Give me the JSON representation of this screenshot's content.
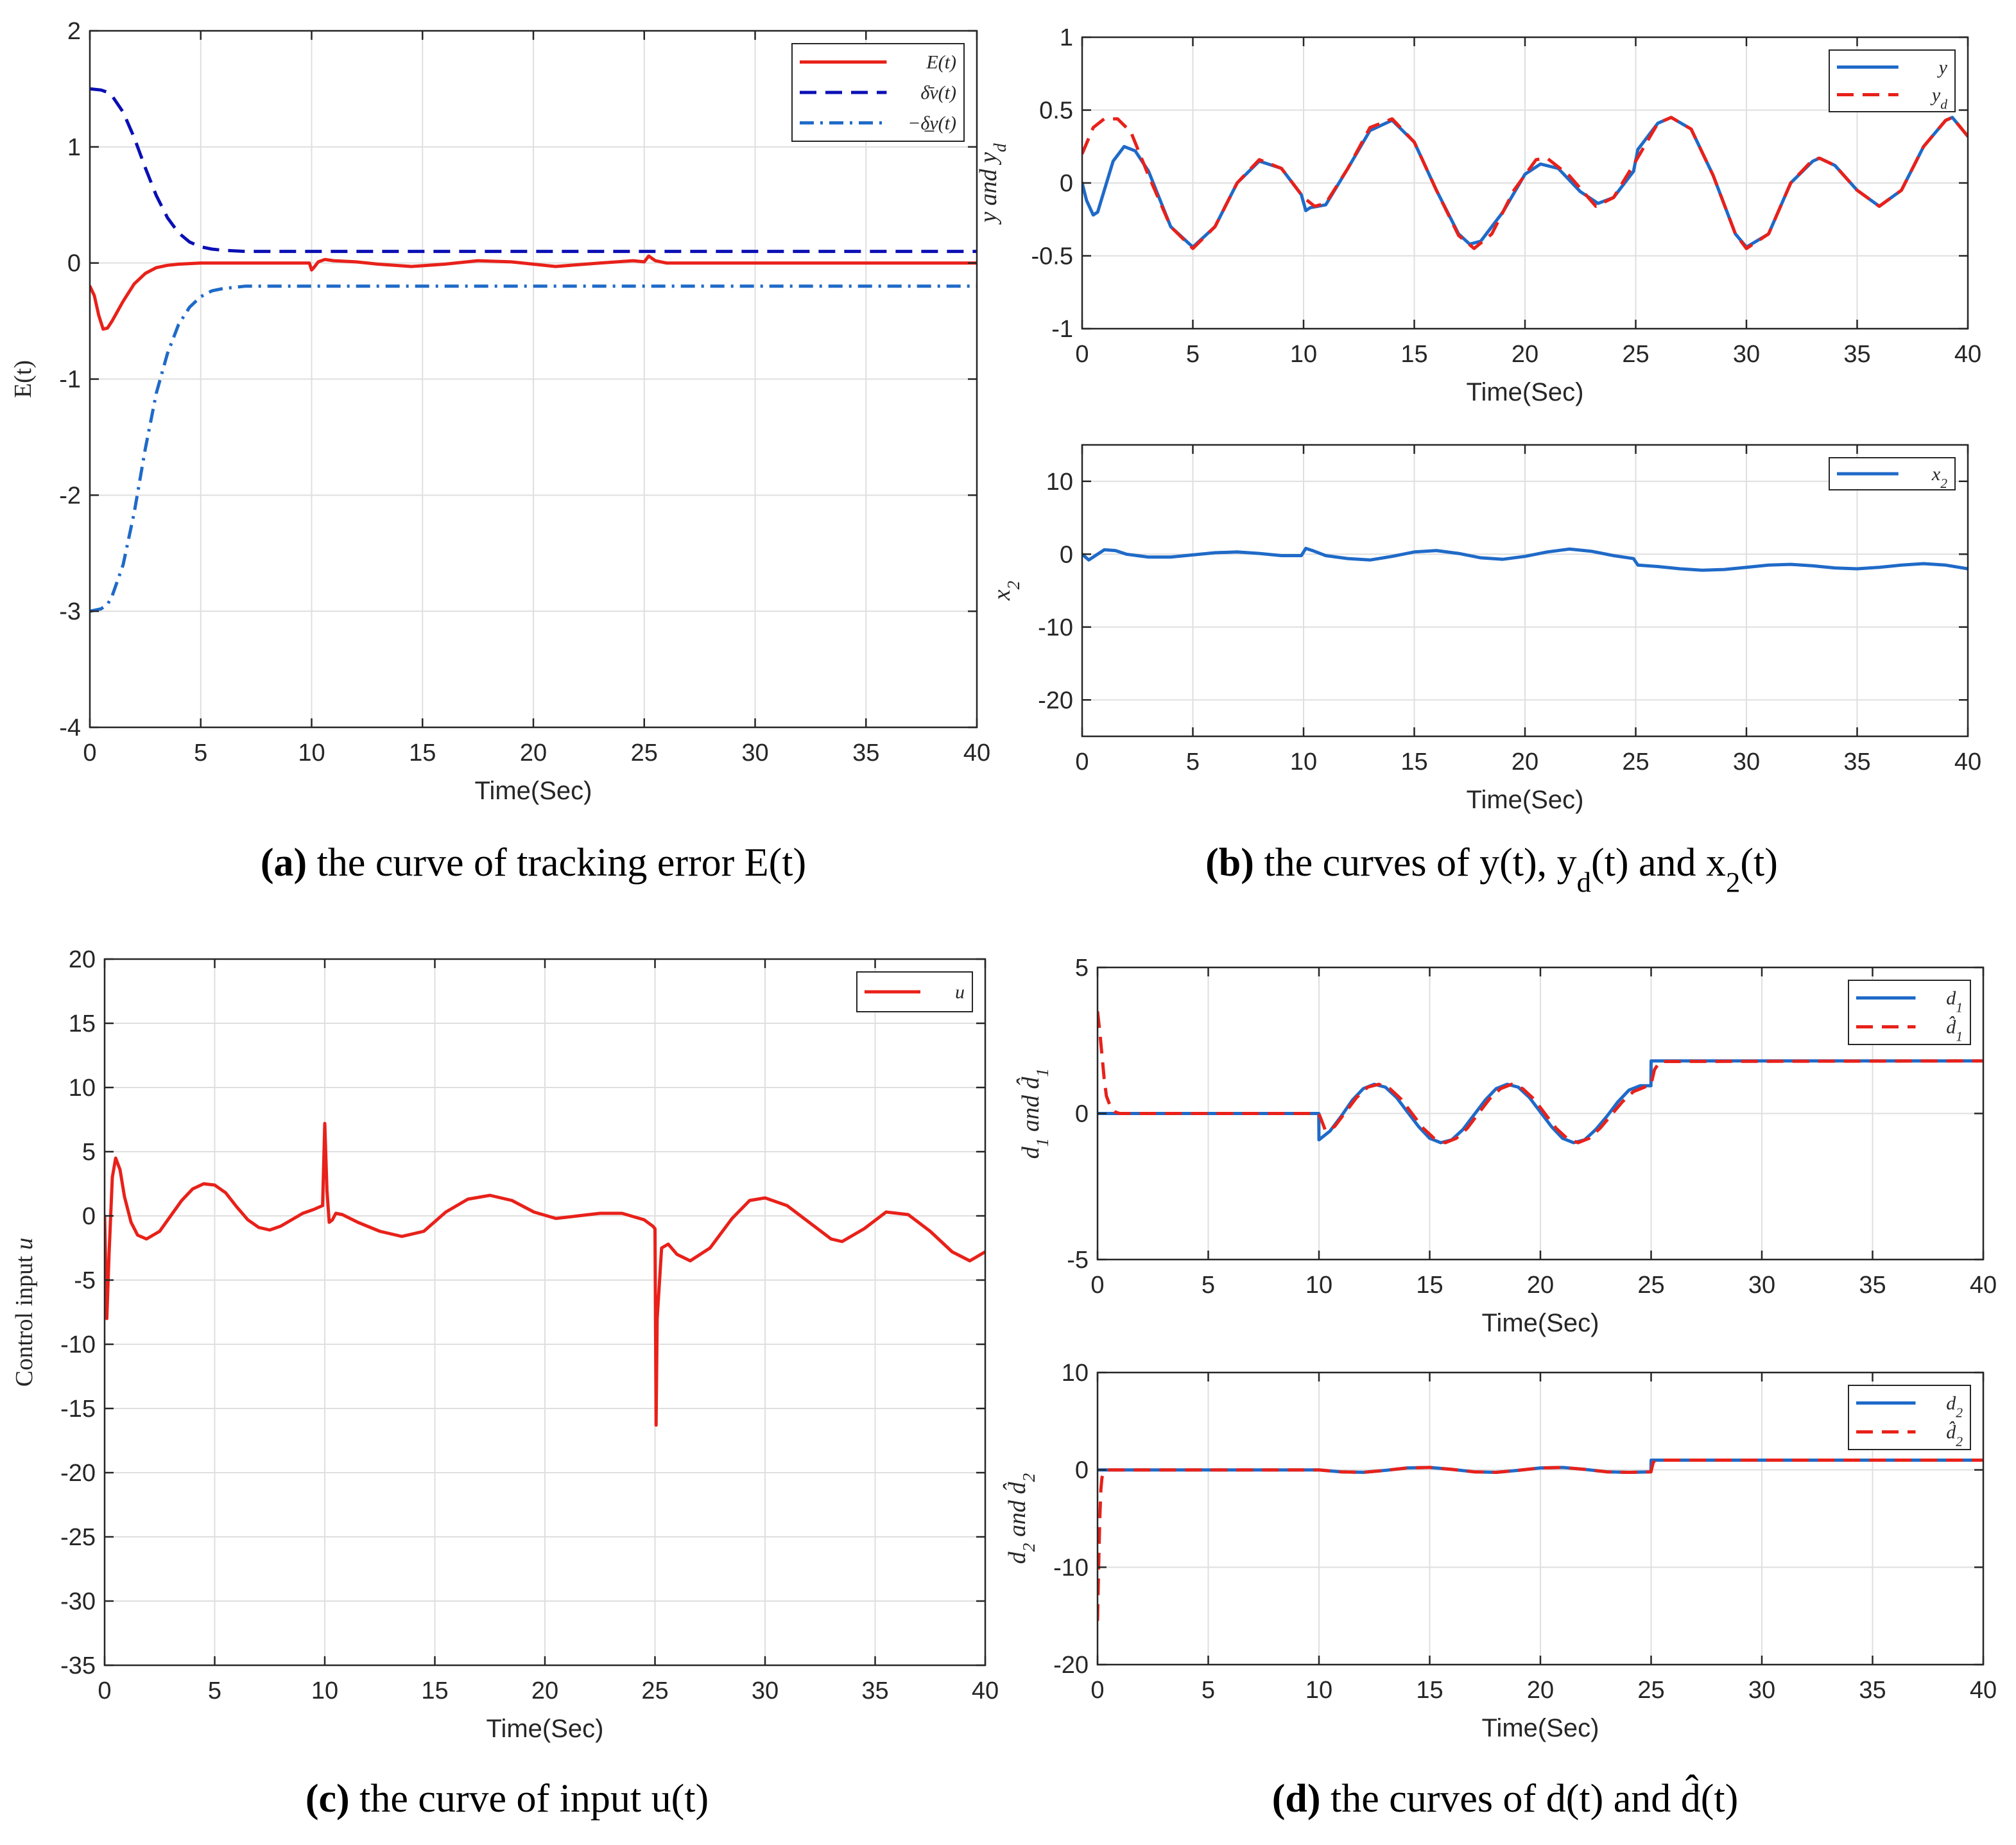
{
  "captions": [
    {
      "label": "(a)",
      "text": "the curve of tracking error E(t)"
    },
    {
      "label": "(b)",
      "text": "the curves of y(t), y_d(t) and x_2(t)"
    },
    {
      "label": "(c)",
      "text": "the curve of input u(t)"
    },
    {
      "label": "(d)",
      "text": "the curves of d(t) and d̂(t)"
    }
  ],
  "colors": {
    "red": "#e8211a",
    "dark_blue": "#0a0fb4",
    "blue": "#1f6ac8",
    "grid": "#dfdfdf",
    "axis": "#262626"
  },
  "chart_data": [
    {
      "id": "a",
      "type": "line",
      "title": "",
      "xlabel": "Time(Sec)",
      "ylabel": "E(t)",
      "xlim": [
        0,
        40
      ],
      "ylim": [
        -4,
        2
      ],
      "xticks": [
        0,
        5,
        10,
        15,
        20,
        25,
        30,
        35,
        40
      ],
      "yticks": [
        -4,
        -3,
        -2,
        -1,
        0,
        1,
        2
      ],
      "grid": true,
      "legend_position": "top-right",
      "series": [
        {
          "name": "E(t)",
          "color": "#e8211a",
          "dash": "solid",
          "x": [
            0,
            0.2,
            0.4,
            0.6,
            0.8,
            1.0,
            1.5,
            2,
            2.5,
            3,
            3.5,
            4,
            5,
            6,
            8,
            9.9,
            10.0,
            10.1,
            10.3,
            10.6,
            11,
            12,
            13,
            14.5,
            16,
            17.5,
            19,
            21,
            23,
            24.5,
            25.0,
            25.2,
            25.5,
            26,
            28,
            30,
            35,
            40
          ],
          "y": [
            -0.2,
            -0.28,
            -0.45,
            -0.57,
            -0.56,
            -0.5,
            -0.33,
            -0.18,
            -0.09,
            -0.04,
            -0.02,
            -0.01,
            0,
            0,
            0,
            0,
            -0.06,
            -0.04,
            0.01,
            0.03,
            0.02,
            0.01,
            -0.01,
            -0.03,
            -0.01,
            0.02,
            0.01,
            -0.03,
            0.0,
            0.02,
            0.01,
            0.06,
            0.02,
            0,
            0,
            0,
            0,
            0
          ]
        },
        {
          "name": "δ̄ν(t)",
          "color": "#0a0fb4",
          "dash": "dashed",
          "x": [
            0,
            0.5,
            0.8,
            1.0,
            1.5,
            2,
            2.5,
            3,
            3.5,
            4,
            4.5,
            5,
            5.5,
            6,
            7,
            8,
            40
          ],
          "y": [
            1.5,
            1.49,
            1.47,
            1.44,
            1.3,
            1.08,
            0.82,
            0.58,
            0.39,
            0.26,
            0.18,
            0.14,
            0.12,
            0.11,
            0.1,
            0.1,
            0.1
          ]
        },
        {
          "name": "−δ̲ν(t)",
          "color": "#1f6ac8",
          "dash": "dashdot",
          "x": [
            0,
            0.5,
            0.8,
            1.0,
            1.5,
            2,
            2.5,
            3,
            3.5,
            4,
            4.5,
            5,
            5.5,
            6,
            7,
            8,
            40
          ],
          "y": [
            -3.0,
            -2.98,
            -2.94,
            -2.87,
            -2.6,
            -2.15,
            -1.6,
            -1.12,
            -0.78,
            -0.53,
            -0.38,
            -0.29,
            -0.24,
            -0.22,
            -0.2,
            -0.2,
            -0.2
          ]
        }
      ]
    },
    {
      "id": "b1",
      "type": "line",
      "title": "",
      "xlabel": "Time(Sec)",
      "ylabel": "y and y_d",
      "xlim": [
        0,
        40
      ],
      "ylim": [
        -1,
        1
      ],
      "xticks": [
        0,
        5,
        10,
        15,
        20,
        25,
        30,
        35,
        40
      ],
      "yticks": [
        -1,
        -0.5,
        0,
        0.5,
        1
      ],
      "grid": true,
      "legend_position": "top-right",
      "series": [
        {
          "name": "y",
          "color": "#1f6ac8",
          "dash": "solid",
          "x": [
            0,
            0.2,
            0.5,
            0.7,
            1.0,
            1.4,
            1.9,
            2.4,
            3,
            4,
            5,
            6,
            7,
            8,
            9,
            9.9,
            10.1,
            10.3,
            11,
            12,
            13,
            14,
            15,
            16,
            17,
            17.5,
            18,
            19,
            20,
            20.7,
            21.5,
            22.5,
            23.3,
            24,
            24.9,
            25.1,
            26,
            26.6,
            27.5,
            28.5,
            29.5,
            30,
            31,
            32,
            33,
            33.3,
            34,
            35,
            36,
            37,
            38,
            39,
            39.3,
            40
          ],
          "y": [
            0.0,
            -0.12,
            -0.22,
            -0.2,
            -0.05,
            0.15,
            0.25,
            0.22,
            0.08,
            -0.3,
            -0.44,
            -0.3,
            0.0,
            0.15,
            0.1,
            -0.08,
            -0.19,
            -0.17,
            -0.15,
            0.1,
            0.36,
            0.43,
            0.28,
            -0.05,
            -0.35,
            -0.42,
            -0.4,
            -0.2,
            0.06,
            0.13,
            0.1,
            -0.06,
            -0.14,
            -0.1,
            0.08,
            0.23,
            0.41,
            0.45,
            0.37,
            0.05,
            -0.35,
            -0.44,
            -0.35,
            0.0,
            0.15,
            0.17,
            0.12,
            -0.05,
            -0.16,
            -0.05,
            0.25,
            0.43,
            0.45,
            0.32
          ]
        },
        {
          "name": "y_d",
          "color": "#e8211a",
          "dash": "dashed",
          "x": [
            0,
            0.5,
            1.0,
            1.6,
            2.2,
            3,
            4,
            5,
            6,
            7,
            8,
            9,
            10,
            10.5,
            11,
            12,
            13,
            14,
            15,
            16,
            17,
            17.7,
            18.5,
            19.5,
            20.5,
            21,
            22,
            23.2,
            24,
            25,
            26,
            26.6,
            27.5,
            28.5,
            29.5,
            30,
            31,
            32,
            33,
            33.3,
            34,
            35,
            36,
            37,
            38,
            39,
            39.3,
            40
          ],
          "y": [
            0.2,
            0.38,
            0.44,
            0.44,
            0.35,
            0.05,
            -0.3,
            -0.45,
            -0.3,
            0.0,
            0.16,
            0.1,
            -0.1,
            -0.16,
            -0.14,
            0.1,
            0.38,
            0.44,
            0.28,
            -0.05,
            -0.36,
            -0.45,
            -0.35,
            -0.05,
            0.16,
            0.17,
            0.05,
            -0.16,
            -0.1,
            0.15,
            0.41,
            0.45,
            0.37,
            0.05,
            -0.35,
            -0.45,
            -0.35,
            0.0,
            0.16,
            0.17,
            0.12,
            -0.05,
            -0.16,
            -0.05,
            0.25,
            0.43,
            0.45,
            0.32
          ]
        }
      ]
    },
    {
      "id": "b2",
      "type": "line",
      "title": "",
      "xlabel": "Time(Sec)",
      "ylabel": "x_2",
      "xlim": [
        0,
        40
      ],
      "ylim": [
        -25,
        15
      ],
      "xticks": [
        0,
        5,
        10,
        15,
        20,
        25,
        30,
        35,
        40
      ],
      "yticks": [
        -20,
        -10,
        0,
        10
      ],
      "grid": true,
      "legend_position": "top-right",
      "series": [
        {
          "name": "x_2",
          "color": "#1f6ac8",
          "dash": "solid",
          "x": [
            0,
            0.3,
            0.6,
            1.0,
            1.5,
            2,
            3,
            4,
            5,
            6,
            7,
            8,
            9,
            9.9,
            10.1,
            10.4,
            11,
            12,
            13,
            14,
            15,
            16,
            17,
            18,
            19,
            20,
            21,
            22,
            23,
            24,
            24.9,
            25.1,
            26,
            27,
            28,
            29,
            30,
            31,
            32,
            33,
            34,
            35,
            36,
            37,
            38,
            39,
            40
          ],
          "y": [
            0,
            -0.8,
            -0.2,
            0.6,
            0.5,
            0.0,
            -0.4,
            -0.4,
            -0.1,
            0.2,
            0.3,
            0.1,
            -0.2,
            -0.2,
            0.8,
            0.5,
            -0.2,
            -0.6,
            -0.8,
            -0.3,
            0.3,
            0.5,
            0.1,
            -0.5,
            -0.7,
            -0.3,
            0.3,
            0.7,
            0.4,
            -0.2,
            -0.6,
            -1.5,
            -1.7,
            -2.0,
            -2.2,
            -2.1,
            -1.8,
            -1.5,
            -1.4,
            -1.6,
            -1.9,
            -2.0,
            -1.8,
            -1.5,
            -1.3,
            -1.5,
            -2.0
          ]
        }
      ]
    },
    {
      "id": "c",
      "type": "line",
      "title": "",
      "xlabel": "Time(Sec)",
      "ylabel": "Control input u",
      "xlim": [
        0,
        40
      ],
      "ylim": [
        -35,
        20
      ],
      "xticks": [
        0,
        5,
        10,
        15,
        20,
        25,
        30,
        35,
        40
      ],
      "yticks": [
        -35,
        -30,
        -25,
        -20,
        -15,
        -10,
        -5,
        0,
        5,
        10,
        15,
        20
      ],
      "grid": true,
      "legend_position": "top-right",
      "series": [
        {
          "name": "u",
          "color": "#e8211a",
          "dash": "solid",
          "x": [
            0,
            0.1,
            0.2,
            0.35,
            0.5,
            0.7,
            0.9,
            1.2,
            1.5,
            1.9,
            2.5,
            3,
            3.5,
            4,
            4.5,
            5,
            5.5,
            6,
            6.5,
            7,
            7.5,
            8,
            8.5,
            9,
            9.5,
            9.9,
            10.0,
            10.1,
            10.2,
            10.35,
            10.5,
            10.8,
            11.5,
            12.5,
            13.5,
            14.5,
            15.5,
            16.5,
            17.5,
            18.5,
            19.5,
            20.5,
            21.5,
            22.5,
            23.5,
            24.5,
            24.9,
            25.0,
            25.05,
            25.1,
            25.3,
            25.6,
            26,
            26.6,
            27.5,
            28.5,
            29.3,
            30,
            31,
            32,
            33,
            33.5,
            34.5,
            35.5,
            36.5,
            37.5,
            38.5,
            39.3,
            40
          ],
          "y": [
            0,
            -8,
            -3,
            3,
            4.5,
            3.6,
            1.5,
            -0.5,
            -1.5,
            -1.8,
            -1.2,
            0,
            1.2,
            2.1,
            2.5,
            2.4,
            1.8,
            0.7,
            -0.3,
            -0.9,
            -1.1,
            -0.8,
            -0.3,
            0.2,
            0.5,
            0.8,
            7.2,
            2,
            -0.5,
            -0.3,
            0.2,
            0.1,
            -0.5,
            -1.2,
            -1.6,
            -1.2,
            0.3,
            1.3,
            1.6,
            1.2,
            0.3,
            -0.2,
            0,
            0.2,
            0.2,
            -0.3,
            -0.8,
            -1.0,
            -16.3,
            -8,
            -2.5,
            -2.2,
            -3,
            -3.5,
            -2.5,
            -0.2,
            1.2,
            1.4,
            0.8,
            -0.5,
            -1.8,
            -2.0,
            -1.0,
            0.3,
            0.1,
            -1.2,
            -2.8,
            -3.5,
            -2.8
          ]
        }
      ]
    },
    {
      "id": "d1",
      "type": "line",
      "title": "",
      "xlabel": "Time(Sec)",
      "ylabel": "d_1 and d̂_1",
      "xlim": [
        0,
        40
      ],
      "ylim": [
        -5,
        5
      ],
      "xticks": [
        0,
        5,
        10,
        15,
        20,
        25,
        30,
        35,
        40
      ],
      "yticks": [
        -5,
        0,
        5
      ],
      "grid": true,
      "legend_position": "top-right",
      "series": [
        {
          "name": "d_1",
          "color": "#1f6ac8",
          "dash": "solid",
          "x": [
            0,
            9.99,
            10.0,
            10.5,
            11,
            11.5,
            12,
            12.5,
            13,
            13.5,
            14,
            14.5,
            15,
            15.5,
            16,
            16.5,
            17,
            17.5,
            18,
            18.5,
            19,
            19.5,
            20,
            20.5,
            21,
            21.5,
            22,
            22.5,
            23,
            23.5,
            24,
            24.5,
            24.99,
            25.0,
            40
          ],
          "y": [
            0,
            0,
            -0.9,
            -0.6,
            -0.1,
            0.45,
            0.85,
            1.0,
            0.9,
            0.55,
            0.05,
            -0.45,
            -0.85,
            -1.0,
            -0.9,
            -0.55,
            -0.05,
            0.45,
            0.85,
            1.0,
            0.9,
            0.55,
            0.05,
            -0.45,
            -0.85,
            -1.0,
            -0.9,
            -0.55,
            -0.1,
            0.4,
            0.8,
            0.95,
            0.95,
            1.8,
            1.8
          ]
        },
        {
          "name": "d̂_1",
          "color": "#e8211a",
          "dash": "dashed",
          "x": [
            0,
            0.1,
            0.2,
            0.3,
            0.4,
            0.6,
            0.8,
            1.0,
            1.5,
            9.99,
            10.1,
            10.3,
            10.7,
            11.2,
            11.7,
            12.2,
            12.7,
            13.2,
            13.7,
            14.2,
            14.7,
            15.2,
            15.7,
            16.2,
            16.7,
            17.2,
            17.7,
            18.2,
            18.7,
            19.2,
            19.7,
            20.2,
            20.7,
            21.2,
            21.7,
            22.2,
            22.7,
            23.2,
            23.7,
            24.2,
            24.7,
            25.0,
            25.15,
            25.4,
            40
          ],
          "y": [
            3.5,
            2.8,
            2.0,
            1.2,
            0.6,
            0.2,
            0.05,
            0,
            0,
            0,
            -0.2,
            -0.6,
            -0.45,
            0.05,
            0.55,
            0.9,
            1.0,
            0.85,
            0.5,
            0.0,
            -0.5,
            -0.85,
            -1.0,
            -0.85,
            -0.5,
            0.0,
            0.5,
            0.85,
            1.0,
            0.85,
            0.5,
            0.0,
            -0.5,
            -0.85,
            -1.0,
            -0.85,
            -0.5,
            -0.05,
            0.4,
            0.75,
            0.9,
            1.0,
            1.5,
            1.78,
            1.8
          ]
        }
      ]
    },
    {
      "id": "d2",
      "type": "line",
      "title": "",
      "xlabel": "Time(Sec)",
      "ylabel": "d_2 and d̂_2",
      "xlim": [
        0,
        40
      ],
      "ylim": [
        -20,
        10
      ],
      "xticks": [
        0,
        5,
        10,
        15,
        20,
        25,
        30,
        35,
        40
      ],
      "yticks": [
        -20,
        -10,
        0,
        10
      ],
      "grid": true,
      "legend_position": "top-right",
      "series": [
        {
          "name": "d_2",
          "color": "#1f6ac8",
          "dash": "solid",
          "x": [
            0,
            10,
            11,
            12,
            13,
            14,
            15,
            16,
            17,
            18,
            19,
            20,
            21,
            22,
            23,
            24,
            24.99,
            25.0,
            40
          ],
          "y": [
            0,
            0,
            -0.2,
            -0.25,
            -0.05,
            0.2,
            0.25,
            0.05,
            -0.2,
            -0.25,
            -0.05,
            0.2,
            0.25,
            0.05,
            -0.2,
            -0.25,
            -0.2,
            1.0,
            1.0
          ]
        },
        {
          "name": "d̂_2",
          "color": "#e8211a",
          "dash": "dashed",
          "x": [
            0,
            0.05,
            0.1,
            0.15,
            0.2,
            0.3,
            0.4,
            0.6,
            10,
            11,
            12,
            13,
            14,
            15,
            16,
            17,
            18,
            19,
            20,
            21,
            22,
            23,
            24,
            24.99,
            25.1,
            25.3,
            40
          ],
          "y": [
            -15.5,
            -10,
            -5,
            -2,
            -0.8,
            -0.2,
            0,
            0,
            0,
            -0.2,
            -0.25,
            -0.05,
            0.2,
            0.25,
            0.05,
            -0.2,
            -0.25,
            -0.05,
            0.2,
            0.25,
            0.05,
            -0.2,
            -0.25,
            -0.2,
            0.8,
            1.0,
            1.0
          ]
        }
      ]
    }
  ]
}
